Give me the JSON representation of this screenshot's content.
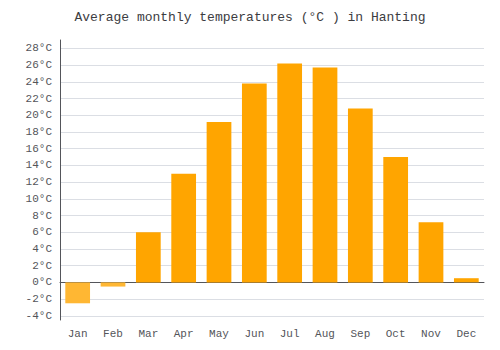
{
  "chart_data": {
    "type": "bar",
    "title": "Average monthly temperatures (°C ) in Hanting",
    "categories": [
      "Jan",
      "Feb",
      "Mar",
      "Apr",
      "May",
      "Jun",
      "Jul",
      "Aug",
      "Sep",
      "Oct",
      "Nov",
      "Dec"
    ],
    "values": [
      -2.5,
      -0.5,
      6.0,
      13.0,
      19.2,
      23.8,
      26.2,
      25.7,
      20.8,
      15.0,
      7.2,
      0.5
    ],
    "colors": [
      "#FFB733",
      "#FFB733",
      "#FFA500",
      "#FFA500",
      "#FFA500",
      "#FFA500",
      "#FFA500",
      "#FFA500",
      "#FFA500",
      "#FFA500",
      "#FFA500",
      "#FFA500"
    ],
    "ylim": [
      -4.5,
      29
    ],
    "yticks": [
      {
        "value": -4,
        "label": "-4°C"
      },
      {
        "value": -2,
        "label": "-2°C"
      },
      {
        "value": 0,
        "label": "0°C"
      },
      {
        "value": 2,
        "label": "2°C"
      },
      {
        "value": 4,
        "label": "4°C"
      },
      {
        "value": 6,
        "label": "6°C"
      },
      {
        "value": 8,
        "label": "8°C"
      },
      {
        "value": 10,
        "label": "10°C"
      },
      {
        "value": 12,
        "label": "12°C"
      },
      {
        "value": 14,
        "label": "14°C"
      },
      {
        "value": 16,
        "label": "16°C"
      },
      {
        "value": 18,
        "label": "18°C"
      },
      {
        "value": 20,
        "label": "20°C"
      },
      {
        "value": 22,
        "label": "22°C"
      },
      {
        "value": 24,
        "label": "24°C"
      },
      {
        "value": 26,
        "label": "26°C"
      },
      {
        "value": 28,
        "label": "28°C"
      }
    ],
    "grid": true
  }
}
